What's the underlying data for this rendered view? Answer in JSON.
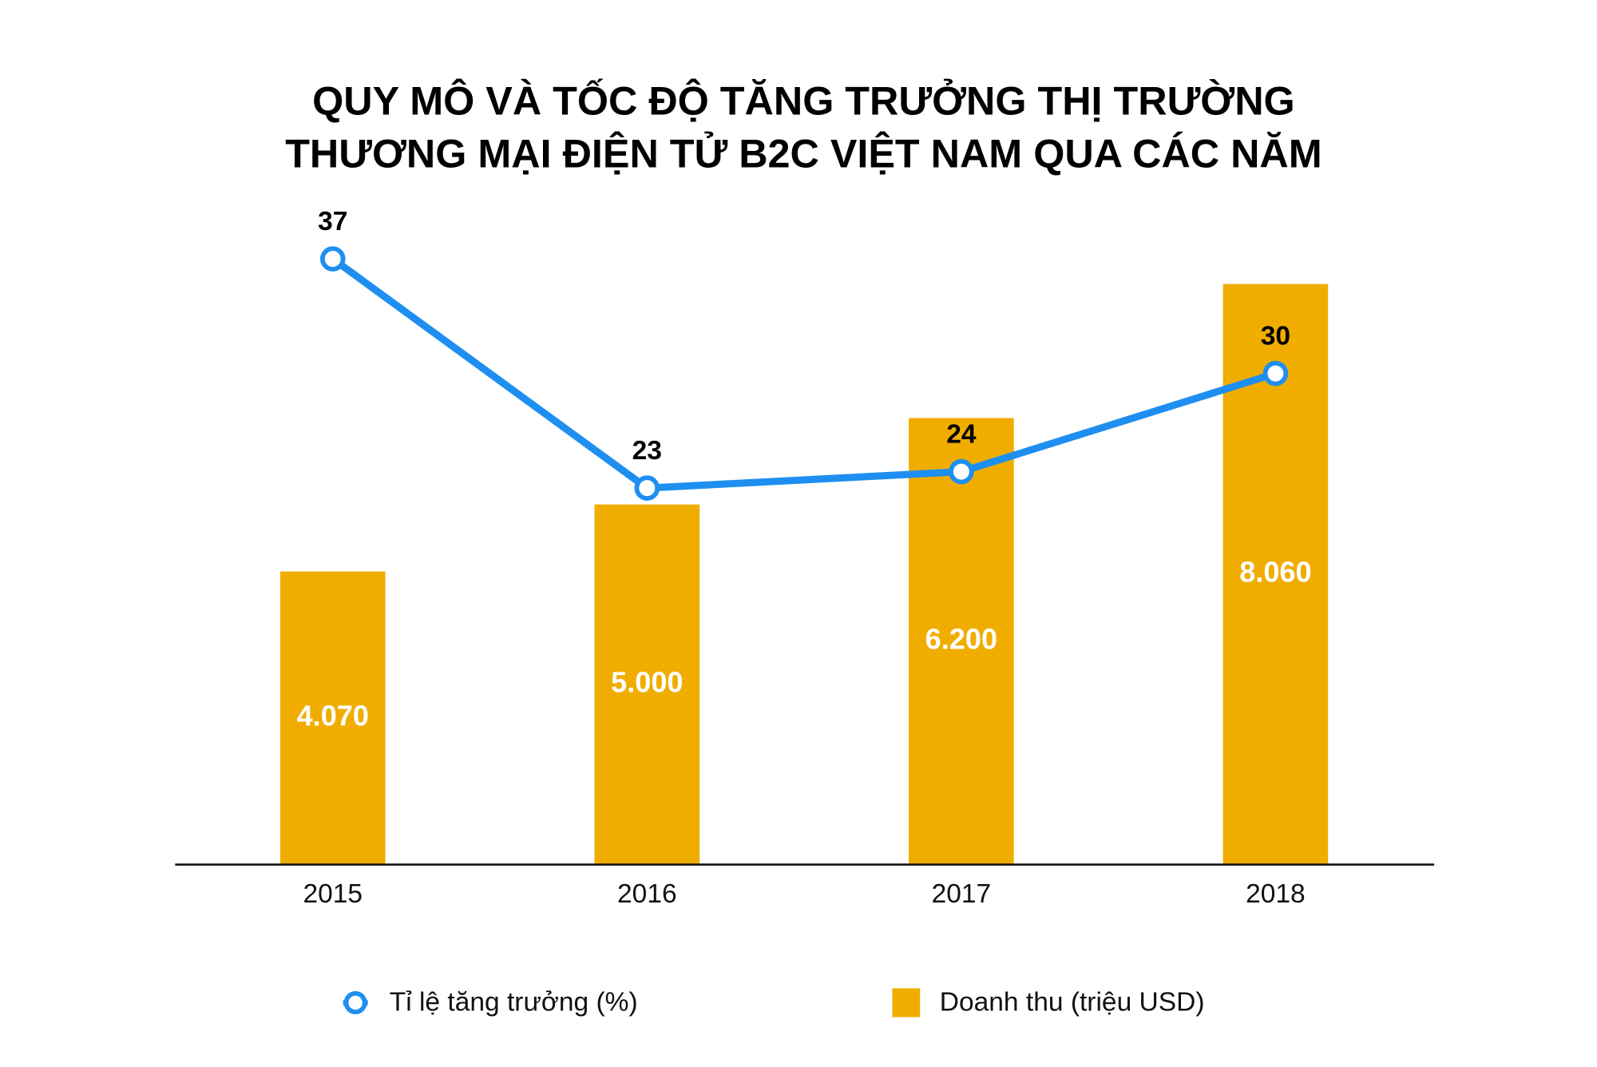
{
  "chart_data": {
    "type": "bar",
    "title": [
      "QUY MÔ VÀ TỐC ĐỘ TĂNG TRƯỞNG THỊ TRƯỜNG",
      "THƯƠNG MẠI ĐIỆN TỬ B2C VIỆT NAM QUA CÁC NĂM"
    ],
    "categories": [
      "2015",
      "2016",
      "2017",
      "2018"
    ],
    "ylim": [
      0,
      10000
    ],
    "y2lim": [
      0,
      44
    ],
    "series": [
      {
        "name": "Tỉ lệ tăng trưởng (%)",
        "type": "line",
        "axis": "y2",
        "color": "#1e8ff0",
        "values": [
          37,
          23,
          24,
          30
        ]
      },
      {
        "name": "Doanh thu (triệu USD)",
        "type": "bar",
        "color": "#f0ad00",
        "values": [
          4070,
          5000,
          6200,
          8060
        ],
        "value_labels": [
          "4.070",
          "5.000",
          "6.200",
          "8.060"
        ]
      }
    ]
  }
}
